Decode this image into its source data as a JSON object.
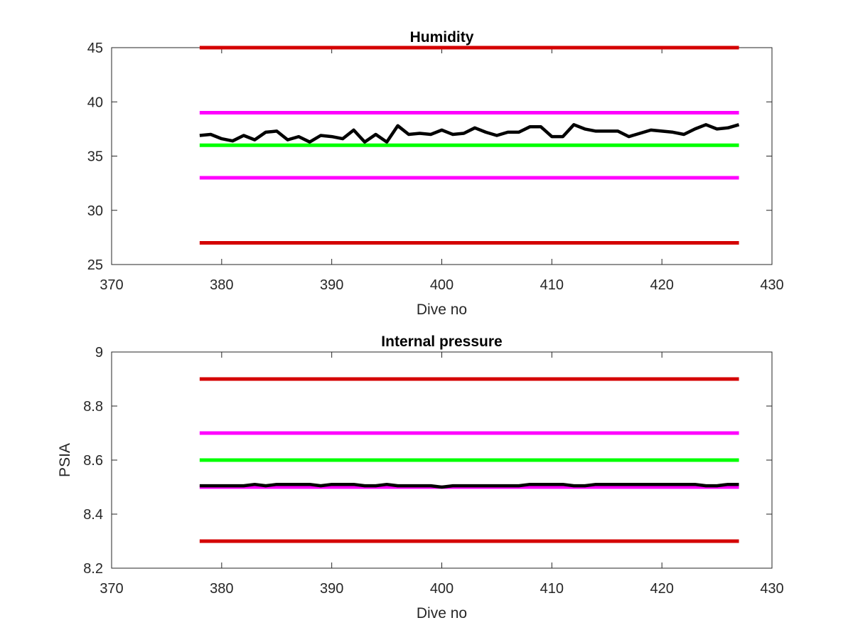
{
  "colors": {
    "limit_red": "#d40000",
    "limit_magenta": "#ff00ff",
    "target_green": "#00ff00",
    "data_black": "#000000",
    "axis": "#262626"
  },
  "chart_data": [
    {
      "type": "line",
      "title": "Humidity",
      "xlabel": "Dive no",
      "ylabel": "",
      "xlim": [
        370,
        430
      ],
      "ylim": [
        25,
        45
      ],
      "xticks": [
        "370",
        "380",
        "390",
        "400",
        "410",
        "420",
        "430"
      ],
      "yticks": [
        "25",
        "30",
        "35",
        "40",
        "45"
      ],
      "grid": false,
      "reference_lines": [
        {
          "y": 45,
          "x": [
            378,
            427
          ],
          "color": "#d40000"
        },
        {
          "y": 39,
          "x": [
            378,
            427
          ],
          "color": "#ff00ff"
        },
        {
          "y": 36,
          "x": [
            378,
            427
          ],
          "color": "#00ff00"
        },
        {
          "y": 33,
          "x": [
            378,
            427
          ],
          "color": "#ff00ff"
        },
        {
          "y": 27,
          "x": [
            378,
            427
          ],
          "color": "#d40000"
        }
      ],
      "series": [
        {
          "color": "#000000",
          "x": [
            378,
            379,
            380,
            381,
            382,
            383,
            384,
            385,
            386,
            387,
            388,
            389,
            390,
            391,
            392,
            393,
            394,
            395,
            396,
            397,
            398,
            399,
            400,
            401,
            402,
            403,
            404,
            405,
            406,
            407,
            408,
            409,
            410,
            411,
            412,
            413,
            414,
            415,
            416,
            417,
            418,
            419,
            420,
            421,
            422,
            423,
            424,
            425,
            426,
            427
          ],
          "y": [
            36.9,
            37.0,
            36.6,
            36.4,
            36.9,
            36.5,
            37.2,
            37.3,
            36.5,
            36.8,
            36.3,
            36.9,
            36.8,
            36.6,
            37.4,
            36.3,
            37.0,
            36.3,
            37.8,
            37.0,
            37.1,
            37.0,
            37.4,
            37.0,
            37.1,
            37.6,
            37.2,
            36.9,
            37.2,
            37.2,
            37.7,
            37.7,
            36.8,
            36.8,
            37.9,
            37.5,
            37.3,
            37.3,
            37.3,
            36.8,
            37.1,
            37.4,
            37.3,
            37.2,
            37.0,
            37.5,
            37.9,
            37.5,
            37.6,
            37.9
          ]
        }
      ]
    },
    {
      "type": "line",
      "title": "Internal pressure",
      "xlabel": "Dive no",
      "ylabel": "PSIA",
      "xlim": [
        370,
        430
      ],
      "ylim": [
        8.2,
        9.0
      ],
      "xticks": [
        "370",
        "380",
        "390",
        "400",
        "410",
        "420",
        "430"
      ],
      "yticks": [
        "8.2",
        "8.4",
        "8.6",
        "8.8",
        "9"
      ],
      "grid": false,
      "reference_lines": [
        {
          "y": 8.9,
          "x": [
            378,
            427
          ],
          "color": "#d40000"
        },
        {
          "y": 8.7,
          "x": [
            378,
            427
          ],
          "color": "#ff00ff"
        },
        {
          "y": 8.6,
          "x": [
            378,
            427
          ],
          "color": "#00ff00"
        },
        {
          "y": 8.5,
          "x": [
            378,
            427
          ],
          "color": "#ff00ff"
        },
        {
          "y": 8.3,
          "x": [
            378,
            427
          ],
          "color": "#d40000"
        }
      ],
      "series": [
        {
          "color": "#000000",
          "x": [
            378,
            379,
            380,
            381,
            382,
            383,
            384,
            385,
            386,
            387,
            388,
            389,
            390,
            391,
            392,
            393,
            394,
            395,
            396,
            397,
            398,
            399,
            400,
            401,
            402,
            403,
            404,
            405,
            406,
            407,
            408,
            409,
            410,
            411,
            412,
            413,
            414,
            415,
            416,
            417,
            418,
            419,
            420,
            421,
            422,
            423,
            424,
            425,
            426,
            427
          ],
          "y": [
            8.505,
            8.505,
            8.505,
            8.505,
            8.505,
            8.51,
            8.505,
            8.51,
            8.51,
            8.51,
            8.51,
            8.505,
            8.51,
            8.51,
            8.51,
            8.505,
            8.505,
            8.51,
            8.505,
            8.505,
            8.505,
            8.505,
            8.5,
            8.505,
            8.505,
            8.505,
            8.505,
            8.505,
            8.505,
            8.505,
            8.51,
            8.51,
            8.51,
            8.51,
            8.505,
            8.505,
            8.51,
            8.51,
            8.51,
            8.51,
            8.51,
            8.51,
            8.51,
            8.51,
            8.51,
            8.51,
            8.505,
            8.505,
            8.51,
            8.51
          ]
        }
      ]
    }
  ]
}
